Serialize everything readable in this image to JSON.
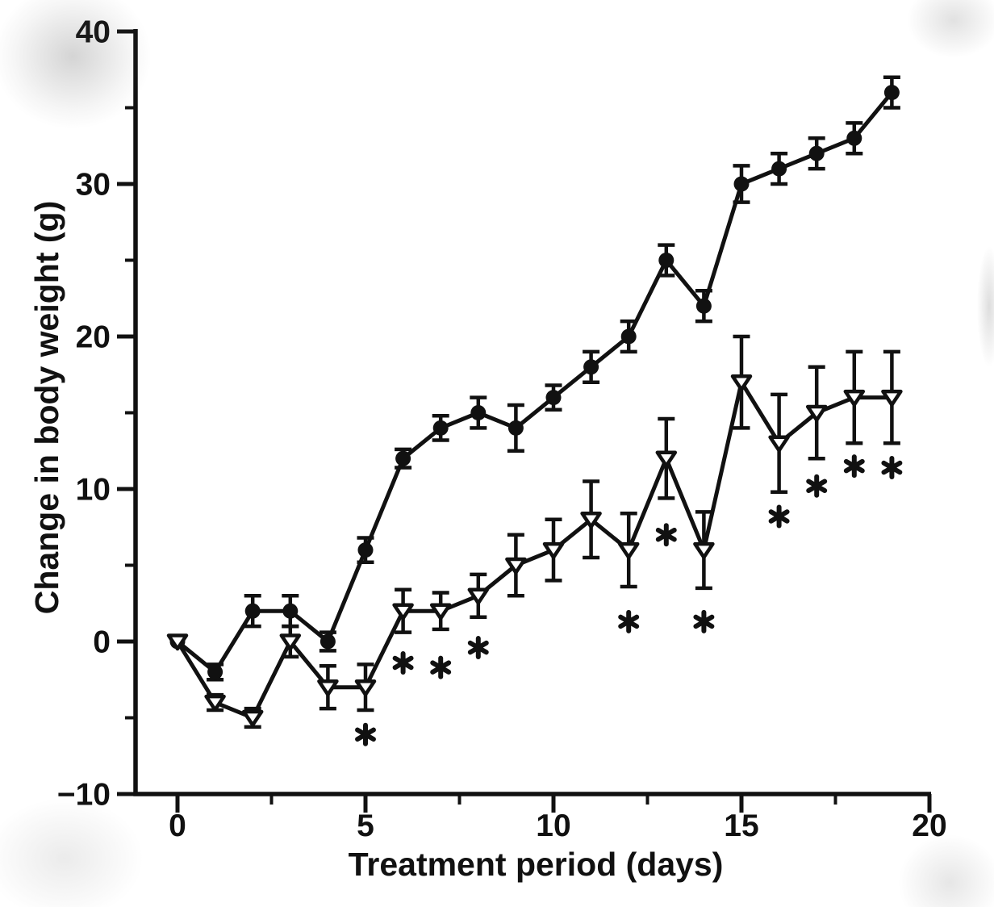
{
  "figure": {
    "background_color": "#ffffff",
    "ink_color": "#111111"
  },
  "chart_data": {
    "type": "line",
    "title": "",
    "xlabel": "Treatment period (days)",
    "ylabel": "Change in body weight (g)",
    "xlim": [
      0,
      20
    ],
    "ylim": [
      -10,
      40
    ],
    "grid": false,
    "legend": "none",
    "x_ticks_major": [
      0,
      5,
      10,
      15,
      20
    ],
    "x_tick_labels": [
      "0",
      "5",
      "10",
      "15",
      "20"
    ],
    "x_ticks_minor": [
      2.5,
      7.5,
      12.5,
      17.5
    ],
    "y_ticks_major": [
      -10,
      0,
      10,
      20,
      30,
      40
    ],
    "y_tick_labels": [
      "−10",
      "0",
      "10",
      "20",
      "30",
      "40"
    ],
    "y_ticks_minor": [
      -5,
      5,
      15,
      25,
      35
    ],
    "x": [
      0,
      1,
      2,
      3,
      4,
      5,
      6,
      7,
      8,
      9,
      10,
      11,
      12,
      13,
      14,
      15,
      16,
      17,
      18,
      19
    ],
    "series": [
      {
        "name": "control-filled-circle",
        "marker": "filled-circle",
        "values": [
          0,
          -2,
          2,
          2,
          0,
          6,
          12,
          14,
          15,
          14,
          16,
          18,
          20,
          25,
          22,
          30,
          31,
          32,
          33,
          36
        ],
        "errors": [
          0,
          0.5,
          1,
          1,
          0.6,
          0.8,
          0.6,
          0.8,
          1,
          1.5,
          0.8,
          1,
          1,
          1,
          1,
          1.2,
          1,
          1,
          1,
          1
        ]
      },
      {
        "name": "treated-open-triangle",
        "marker": "open-triangle-down",
        "values": [
          0,
          -4,
          -5,
          0,
          -3,
          -3,
          2,
          2,
          3,
          5,
          6,
          8,
          6,
          12,
          6,
          17,
          13,
          15,
          16,
          16
        ],
        "errors": [
          0,
          0.5,
          0.6,
          1,
          1.4,
          1.5,
          1.4,
          1.2,
          1.4,
          2,
          2,
          2.5,
          2.4,
          2.6,
          2.5,
          3,
          3.2,
          3,
          3,
          3
        ]
      }
    ],
    "significance": {
      "symbol": "*",
      "applies_to_series": "treated-open-triangle",
      "points": [
        {
          "x": 5,
          "y": -6.1
        },
        {
          "x": 6,
          "y": -1.4
        },
        {
          "x": 7,
          "y": -1.7
        },
        {
          "x": 8,
          "y": -0.4
        },
        {
          "x": 12,
          "y": 1.3
        },
        {
          "x": 13,
          "y": 7.0
        },
        {
          "x": 14,
          "y": 1.3
        },
        {
          "x": 16,
          "y": 8.2
        },
        {
          "x": 17,
          "y": 10.2
        },
        {
          "x": 18,
          "y": 11.5
        },
        {
          "x": 19,
          "y": 11.4
        }
      ]
    }
  }
}
